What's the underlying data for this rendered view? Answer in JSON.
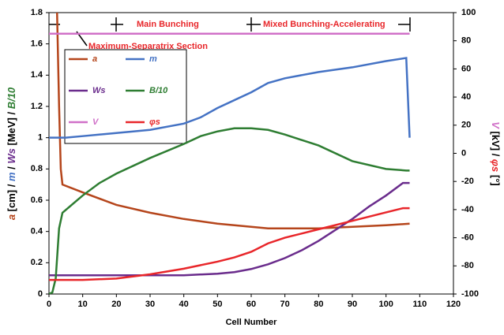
{
  "chart_data": {
    "type": "line",
    "xlabel": "Cell Number",
    "ylabel_parts": [
      "a",
      " [cm] / ",
      "m",
      " / ",
      "Ws",
      " [MeV] / ",
      "B/10"
    ],
    "y2label_parts": [
      "V",
      " [kV] / ",
      "φs",
      " [°]"
    ],
    "annotations": [
      "Main Bunching",
      "Mixed Bunching-Accelerating",
      "Maximum-Separatrix Section"
    ],
    "xlim": [
      0,
      120
    ],
    "xticks": [
      0,
      10,
      20,
      30,
      40,
      50,
      60,
      70,
      80,
      90,
      100,
      110,
      120
    ],
    "ylim": [
      0,
      1.8
    ],
    "yticks": [
      0,
      0.2,
      0.4,
      0.6,
      0.8,
      1,
      1.2,
      1.4,
      1.6,
      1.8
    ],
    "y2lim": [
      -100,
      100
    ],
    "y2ticks": [
      -100,
      -80,
      -60,
      -40,
      -20,
      0,
      20,
      40,
      60,
      80,
      100
    ],
    "series": [
      {
        "name": "a",
        "color": "#b5451b",
        "x": [
          2,
          3,
          3.5,
          4,
          10,
          20,
          30,
          40,
          50,
          60,
          65,
          80,
          90,
          100,
          107
        ],
        "values": [
          2.2,
          1.2,
          0.8,
          0.7,
          0.65,
          0.57,
          0.52,
          0.48,
          0.45,
          0.43,
          0.42,
          0.42,
          0.43,
          0.44,
          0.45
        ]
      },
      {
        "name": "m",
        "color": "#4472c4",
        "x": [
          0,
          5,
          10,
          20,
          30,
          40,
          45,
          50,
          55,
          60,
          65,
          70,
          80,
          90,
          100,
          106,
          107
        ],
        "values": [
          1.0,
          1.0,
          1.01,
          1.03,
          1.05,
          1.09,
          1.13,
          1.19,
          1.24,
          1.29,
          1.35,
          1.38,
          1.42,
          1.45,
          1.49,
          1.51,
          1.0
        ]
      },
      {
        "name": "Ws",
        "color": "#6a2c8c",
        "x": [
          0,
          20,
          40,
          50,
          55,
          60,
          65,
          70,
          75,
          80,
          85,
          90,
          95,
          100,
          105,
          107
        ],
        "values": [
          0.12,
          0.12,
          0.12,
          0.13,
          0.14,
          0.16,
          0.19,
          0.23,
          0.28,
          0.34,
          0.41,
          0.48,
          0.56,
          0.63,
          0.71,
          0.71
        ]
      },
      {
        "name": "B/10",
        "color": "#2e7d32",
        "x": [
          0,
          1,
          2,
          3,
          4,
          10,
          15,
          20,
          30,
          40,
          45,
          50,
          55,
          60,
          65,
          70,
          80,
          90,
          100,
          106,
          107
        ],
        "values": [
          0,
          0.01,
          0.1,
          0.42,
          0.52,
          0.63,
          0.71,
          0.77,
          0.87,
          0.96,
          1.01,
          1.04,
          1.06,
          1.06,
          1.05,
          1.02,
          0.95,
          0.85,
          0.8,
          0.79,
          0.79
        ]
      },
      {
        "name": "V",
        "color": "#d070c8",
        "axis": "y2",
        "x": [
          0,
          107
        ],
        "values": [
          85,
          85
        ]
      },
      {
        "name": "φs",
        "color": "#e8262a",
        "axis": "y2",
        "x": [
          0,
          10,
          20,
          30,
          40,
          50,
          55,
          60,
          65,
          70,
          80,
          90,
          100,
          105,
          107
        ],
        "values": [
          -90,
          -90,
          -89,
          -86,
          -82,
          -77,
          -74,
          -70,
          -64,
          -60,
          -54,
          -48,
          -42,
          -39,
          -39
        ]
      }
    ]
  }
}
